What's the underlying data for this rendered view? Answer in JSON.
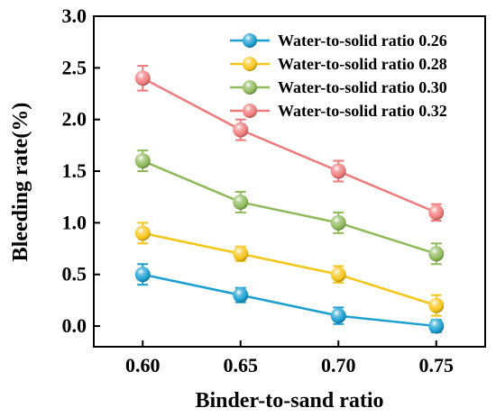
{
  "chart_data": {
    "type": "line",
    "x": [
      0.6,
      0.65,
      0.7,
      0.75
    ],
    "x_tick_labels": [
      "0.60",
      "0.65",
      "0.70",
      "0.75"
    ],
    "y_tick_values": [
      0.0,
      0.5,
      1.0,
      1.5,
      2.0,
      2.5,
      3.0
    ],
    "y_tick_labels": [
      "0.0",
      "0.5",
      "1.0",
      "1.5",
      "2.0",
      "2.5",
      "3.0"
    ],
    "xlabel": "Binder-to-sand ratio",
    "ylabel": "Bleeding rate(%)",
    "xlim": [
      0.575,
      0.775
    ],
    "ylim": [
      -0.2,
      3.0
    ],
    "grid": false,
    "legend_position": "top-right",
    "series": [
      {
        "name": "Water-to-solid ratio 0.26",
        "color": "#1a9fd0",
        "values": [
          0.5,
          0.3,
          0.1,
          0.0
        ],
        "errors": [
          0.1,
          0.07,
          0.08,
          0.06
        ]
      },
      {
        "name": "Water-to-solid ratio 0.28",
        "color": "#f5c518",
        "values": [
          0.9,
          0.7,
          0.5,
          0.2
        ],
        "errors": [
          0.1,
          0.07,
          0.08,
          0.1
        ]
      },
      {
        "name": "Water-to-solid ratio 0.30",
        "color": "#8fba5a",
        "values": [
          1.6,
          1.2,
          1.0,
          0.7
        ],
        "errors": [
          0.1,
          0.1,
          0.1,
          0.1
        ]
      },
      {
        "name": "Water-to-solid ratio 0.32",
        "color": "#f07a7a",
        "values": [
          2.4,
          1.9,
          1.5,
          1.1
        ],
        "errors": [
          0.12,
          0.1,
          0.1,
          0.08
        ]
      }
    ]
  }
}
